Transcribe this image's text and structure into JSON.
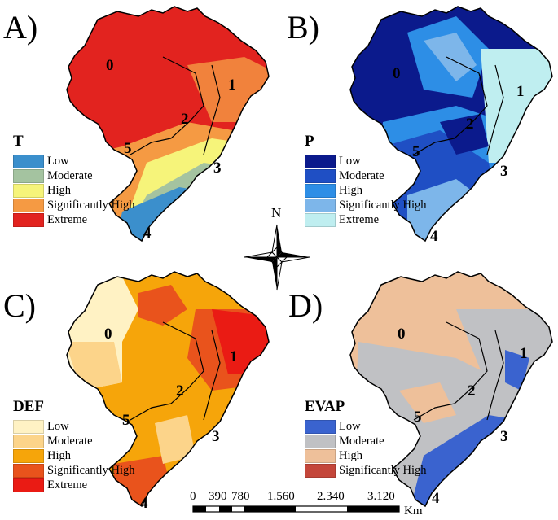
{
  "panels": [
    {
      "letter": "A)",
      "legend_title": "T",
      "legend": [
        {
          "label": "Low",
          "color": "#3b8fcc"
        },
        {
          "label": "Moderate",
          "color": "#a4c3a0"
        },
        {
          "label": "High",
          "color": "#f6f47a"
        },
        {
          "label": "Significantly High",
          "color": "#f59a43"
        },
        {
          "label": "Extreme",
          "color": "#e2231f"
        }
      ],
      "regions": [
        "0",
        "1",
        "2",
        "3",
        "4",
        "5"
      ]
    },
    {
      "letter": "B)",
      "legend_title": "P",
      "legend": [
        {
          "label": "Low",
          "color": "#0b1a8c"
        },
        {
          "label": "Moderate",
          "color": "#1f4fc4"
        },
        {
          "label": "High",
          "color": "#2d8ee6"
        },
        {
          "label": "Significantly High",
          "color": "#7db6ea"
        },
        {
          "label": "Extreme",
          "color": "#bfeef0"
        }
      ],
      "regions": [
        "0",
        "1",
        "2",
        "3",
        "4",
        "5"
      ]
    },
    {
      "letter": "C)",
      "legend_title": "DEF",
      "legend": [
        {
          "label": "Low",
          "color": "#fff2c4"
        },
        {
          "label": "Moderate",
          "color": "#fcd48a"
        },
        {
          "label": "High",
          "color": "#f6a50a"
        },
        {
          "label": "Significantly High",
          "color": "#e9531c"
        },
        {
          "label": "Extreme",
          "color": "#ea1b14"
        }
      ],
      "regions": [
        "0",
        "1",
        "2",
        "3",
        "4",
        "5"
      ]
    },
    {
      "letter": "D)",
      "legend_title": "EVAP",
      "legend": [
        {
          "label": "Low",
          "color": "#3a63cf"
        },
        {
          "label": "Moderate",
          "color": "#c0c1c4"
        },
        {
          "label": "High",
          "color": "#eec09a"
        },
        {
          "label": "Significantly High",
          "color": "#c4463a"
        }
      ],
      "regions": [
        "0",
        "1",
        "2",
        "3",
        "4",
        "5"
      ]
    }
  ],
  "compass": {
    "north_label": "N"
  },
  "scale": {
    "ticks": [
      "0",
      "390",
      "780",
      "1.560",
      "2.340",
      "3.120"
    ],
    "unit": "Km"
  }
}
